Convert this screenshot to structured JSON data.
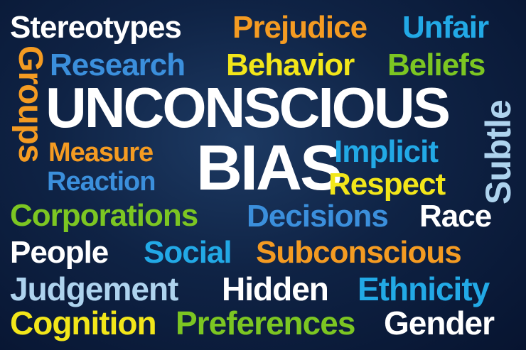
{
  "words": {
    "stereotypes": "Stereotypes",
    "prejudice": "Prejudice",
    "unfair": "Unfair",
    "groups": "Groups",
    "research": "Research",
    "behavior": "Behavior",
    "beliefs": "Beliefs",
    "unconscious": "UNCONSCIOUS",
    "subtle": "Subtle",
    "measure": "Measure",
    "bias": "BIAS",
    "implicit": "Implicit",
    "reaction": "Reaction",
    "respect": "Respect",
    "corporations": "Corporations",
    "decisions": "Decisions",
    "race": "Race",
    "people": "People",
    "social": "Social",
    "subconscious": "Subconscious",
    "judgement": "Judgement",
    "hidden": "Hidden",
    "ethnicity": "Ethnicity",
    "cognition": "Cognition",
    "preferences": "Preferences",
    "gender": "Gender"
  },
  "colors": {
    "background": "#0f2345",
    "white": "#ffffff",
    "orange": "#f49b22",
    "blue": "#22a9e6",
    "yellow": "#f2e61a",
    "green": "#7cc622",
    "light_blue": "#aed3ee"
  }
}
